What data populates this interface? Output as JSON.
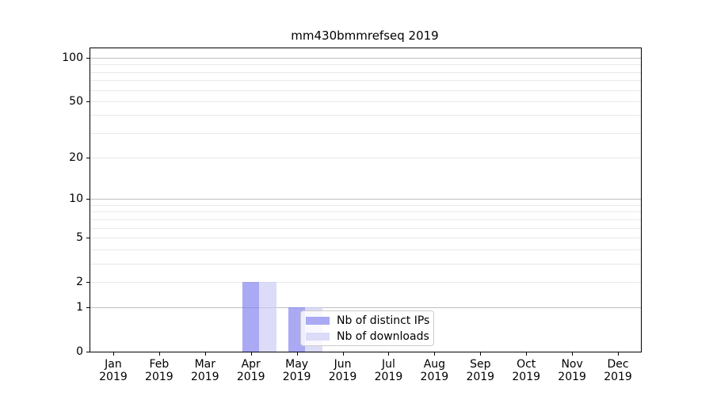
{
  "chart_data": {
    "type": "bar",
    "title": "mm430bmmrefseq 2019",
    "categories": [
      "Jan",
      "Feb",
      "Mar",
      "Apr",
      "May",
      "Jun",
      "Jul",
      "Aug",
      "Sep",
      "Oct",
      "Nov",
      "Dec"
    ],
    "x_sublabel": "2019",
    "series": [
      {
        "name": "Nb of distinct IPs",
        "color": "#a9a9f4",
        "values": [
          0,
          0,
          0,
          2,
          1,
          0,
          0,
          0,
          0,
          0,
          0,
          0
        ]
      },
      {
        "name": "Nb of downloads",
        "color": "#dcdcf8",
        "values": [
          0,
          0,
          0,
          2,
          1,
          0,
          0,
          0,
          0,
          0,
          0,
          0
        ]
      }
    ],
    "yscale": "log10(1+y)",
    "ylim": [
      0,
      100
    ],
    "y_tick_labels": [
      0,
      1,
      2,
      5,
      10,
      20,
      50,
      100
    ],
    "y_major_gridlines": [
      1,
      10,
      100
    ],
    "y_minor_gridlines": [
      2,
      3,
      4,
      5,
      6,
      7,
      8,
      9,
      20,
      30,
      40,
      50,
      60,
      70,
      80,
      90
    ],
    "grid": true,
    "legend_position": "lower center inside plot"
  },
  "colors": {
    "major_grid": "#bfbfbf",
    "minor_grid": "#e9e9e9",
    "axis": "#000000",
    "legend_border": "#cccccc",
    "text": "#000000"
  }
}
